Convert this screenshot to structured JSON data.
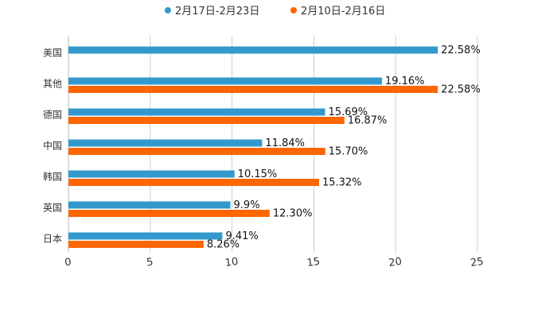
{
  "chart_data": {
    "type": "bar",
    "orientation": "horizontal",
    "categories": [
      "美国",
      "其他",
      "德国",
      "中国",
      "韩国",
      "英国",
      "日本"
    ],
    "series": [
      {
        "name": "2月17日-2月23日",
        "color": "#3399cc",
        "values": [
          22.58,
          19.16,
          15.69,
          11.84,
          10.15,
          9.9,
          9.41
        ],
        "labels": [
          "22.58%",
          "19.16%",
          "15.69%",
          "11.84%",
          "10.15%",
          "9.9%",
          "9.41%"
        ]
      },
      {
        "name": "2月10日-2月16日",
        "color": "#ff6600",
        "values": [
          null,
          22.58,
          16.87,
          15.7,
          15.32,
          12.3,
          8.26
        ],
        "labels": [
          null,
          "22.58%",
          "16.87%",
          "15.70%",
          "15.32%",
          "12.30%",
          "8.26%"
        ]
      }
    ],
    "xlim": [
      0,
      25
    ],
    "xticks": [
      "0",
      "5",
      "10",
      "15",
      "20",
      "25"
    ],
    "grid": true,
    "legend_position": "top",
    "title": "",
    "xlabel": "",
    "ylabel": ""
  }
}
